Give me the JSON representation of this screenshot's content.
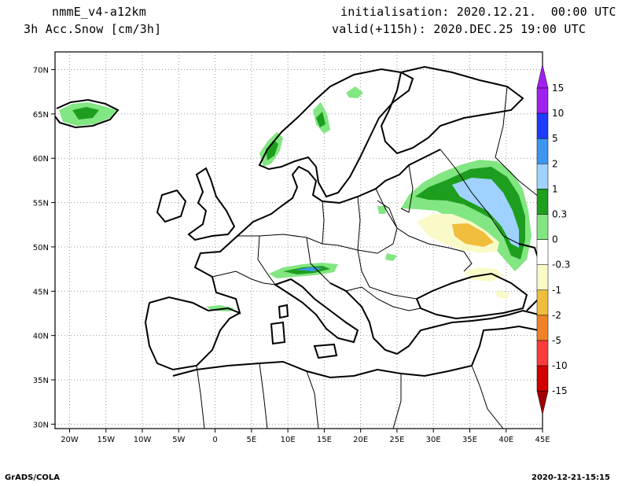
{
  "header": {
    "model": "nmmE_v4-a12km",
    "variable": "3h Acc.Snow [cm/3h]",
    "init": "initialisation: 2020.12.21.  00:00 UTC",
    "valid": "valid(+115h): 2020.DEC.25 19:00 UTC"
  },
  "map": {
    "lon_ticks": [
      "20W",
      "15W",
      "10W",
      "5W",
      "0",
      "5E",
      "10E",
      "15E",
      "20E",
      "25E",
      "30E",
      "35E",
      "40E",
      "45E"
    ],
    "lat_ticks": [
      "70N",
      "65N",
      "60N",
      "55N",
      "50N",
      "45N",
      "40N",
      "35N",
      "30N"
    ],
    "lon_range": [
      -22,
      45
    ],
    "lat_range": [
      29.5,
      72
    ],
    "grid": true
  },
  "colorbar": {
    "labels": [
      "15",
      "10",
      "5",
      "2",
      "1",
      "0.3",
      "0",
      "-0.3",
      "-1",
      "-2",
      "-5",
      "-10",
      "-15"
    ],
    "colors": [
      "#a020f0",
      "#1e3cff",
      "#3c96f0",
      "#a0d2ff",
      "#1e9e1e",
      "#82e682",
      "#ffffff",
      "#fafac8",
      "#f0be3c",
      "#f08228",
      "#fa3c3c",
      "#d20000",
      "#a00000"
    ]
  },
  "footer": {
    "left": "GrADS/COLA",
    "right": "2020-12-21-15:15"
  }
}
